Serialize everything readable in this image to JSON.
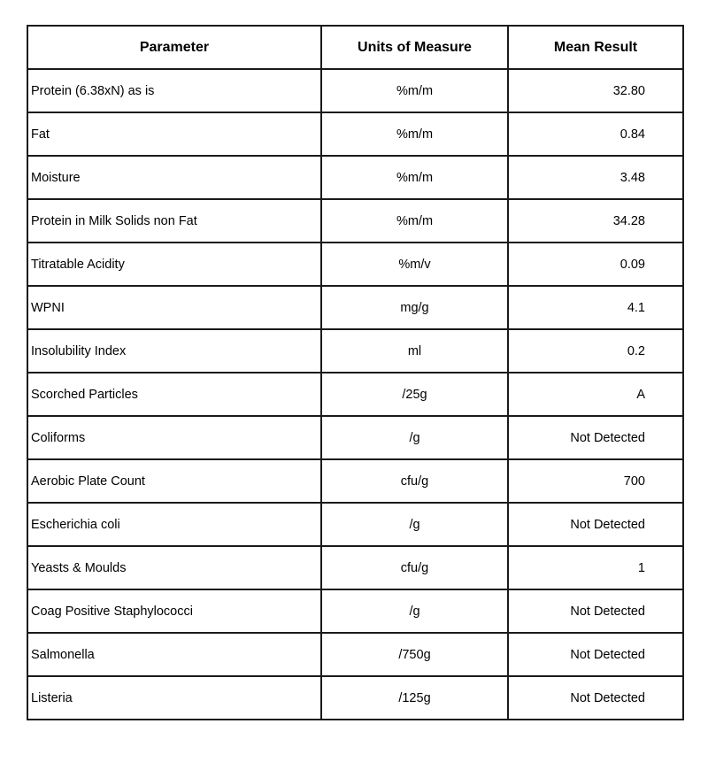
{
  "headers": {
    "parameter": "Parameter",
    "units": "Units of Measure",
    "result": "Mean Result"
  },
  "rows": [
    {
      "parameter": "Protein (6.38xN) as is",
      "units": "%m/m",
      "result": "32.80"
    },
    {
      "parameter": "Fat",
      "units": "%m/m",
      "result": "0.84"
    },
    {
      "parameter": "Moisture",
      "units": "%m/m",
      "result": "3.48"
    },
    {
      "parameter": "Protein in Milk Solids non Fat",
      "units": "%m/m",
      "result": "34.28"
    },
    {
      "parameter": "Titratable Acidity",
      "units": "%m/v",
      "result": "0.09"
    },
    {
      "parameter": "WPNI",
      "units": "mg/g",
      "result": "4.1"
    },
    {
      "parameter": "Insolubility Index",
      "units": "ml",
      "result": "0.2"
    },
    {
      "parameter": "Scorched Particles",
      "units": "/25g",
      "result": "A"
    },
    {
      "parameter": "Coliforms",
      "units": "/g",
      "result": "Not Detected"
    },
    {
      "parameter": "Aerobic Plate Count",
      "units": "cfu/g",
      "result": "700"
    },
    {
      "parameter": "Escherichia  coli",
      "units": "/g",
      "result": "Not Detected"
    },
    {
      "parameter": "Yeasts & Moulds",
      "units": "cfu/g",
      "result": "1"
    },
    {
      "parameter": "Coag Positive Staphylococci",
      "units": "/g",
      "result": "Not Detected"
    },
    {
      "parameter": "Salmonella",
      "units": "/750g",
      "result": "Not Detected"
    },
    {
      "parameter": "Listeria",
      "units": "/125g",
      "result": "Not Detected"
    }
  ]
}
